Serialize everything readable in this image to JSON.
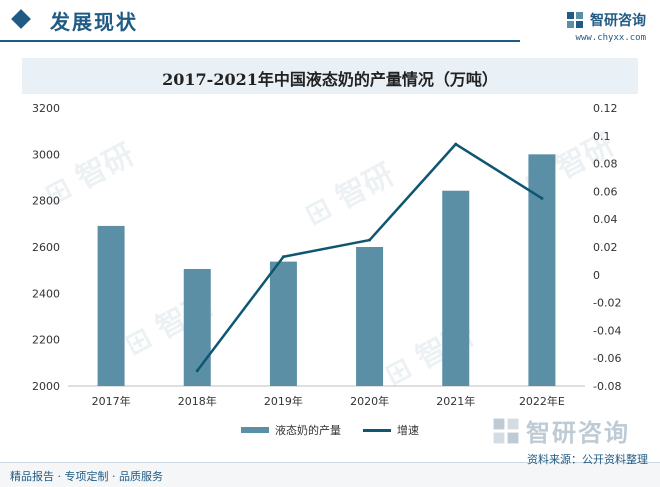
{
  "header": {
    "title": "发展现状",
    "brand_name": "智研咨询",
    "brand_url": "www.chyxx.com"
  },
  "footer": {
    "left_text": "精品报告 · 专项定制 · 品质服务",
    "source_text": "资料来源：公开资料整理",
    "logo_text": "智研咨询"
  },
  "colors": {
    "bar": "#5a8fa6",
    "line": "#0d5770",
    "accent": "#1f5b85"
  },
  "chart_data": {
    "type": "bar",
    "title": "2017-2021年中国液态奶的产量情况（万吨）",
    "categories": [
      "2017年",
      "2018年",
      "2019年",
      "2020年",
      "2021年",
      "2022年E"
    ],
    "series": [
      {
        "name": "液态奶的产量",
        "type": "bar",
        "axis": "left",
        "values": [
          2691,
          2505,
          2537,
          2600,
          2843,
          3000
        ]
      },
      {
        "name": "增速",
        "type": "line",
        "axis": "right",
        "values": [
          null,
          -0.069,
          0.013,
          0.025,
          0.094,
          0.055
        ]
      }
    ],
    "y_left": {
      "min": 2000,
      "max": 3200,
      "ticks": [
        2000,
        2200,
        2400,
        2600,
        2800,
        3000,
        3200
      ]
    },
    "y_right": {
      "min": -0.08,
      "max": 0.12,
      "ticks": [
        -0.08,
        -0.06,
        -0.04,
        -0.02,
        0,
        0.02,
        0.04,
        0.06,
        0.08,
        0.1,
        0.12
      ]
    },
    "grid": false,
    "legend_position": "bottom"
  }
}
